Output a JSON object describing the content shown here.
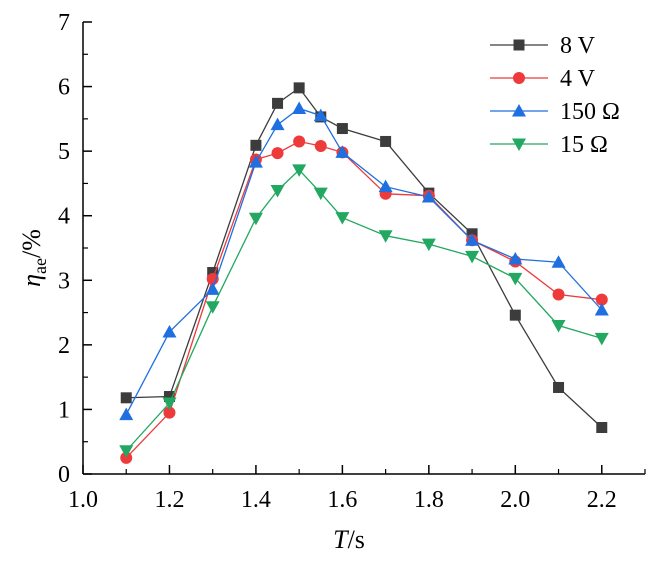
{
  "chart_data": {
    "type": "line",
    "xlabel": "T/s",
    "ylabel": "η_ae/%",
    "xlim": [
      1.0,
      2.3
    ],
    "ylim": [
      0,
      7
    ],
    "xticks": [
      "1.0",
      "1.2",
      "1.4",
      "1.6",
      "1.8",
      "2.0",
      "2.2"
    ],
    "yticks": [
      "0",
      "1",
      "2",
      "3",
      "4",
      "5",
      "6",
      "7"
    ],
    "legend_position": "top-right",
    "grid": false,
    "series": [
      {
        "name": "8 V",
        "color": "#3c3c3c",
        "marker": "square",
        "x": [
          1.1,
          1.2,
          1.3,
          1.4,
          1.45,
          1.5,
          1.55,
          1.6,
          1.7,
          1.8,
          1.9,
          2.0,
          2.1,
          2.2
        ],
        "y": [
          1.18,
          1.2,
          3.12,
          5.09,
          5.74,
          5.98,
          5.53,
          5.35,
          5.15,
          4.35,
          3.72,
          2.46,
          1.34,
          0.72
        ]
      },
      {
        "name": "4 V",
        "color": "#ee3a3a",
        "marker": "circle",
        "x": [
          1.1,
          1.2,
          1.3,
          1.4,
          1.45,
          1.5,
          1.55,
          1.6,
          1.7,
          1.8,
          1.9,
          2.0,
          2.1,
          2.2
        ],
        "y": [
          0.25,
          0.95,
          3.02,
          4.87,
          4.97,
          5.15,
          5.08,
          4.98,
          4.34,
          4.31,
          3.62,
          3.29,
          2.78,
          2.7
        ]
      },
      {
        "name": "150 Ω",
        "color": "#1f6fe0",
        "marker": "triangle-up",
        "x": [
          1.1,
          1.2,
          1.3,
          1.4,
          1.45,
          1.5,
          1.55,
          1.6,
          1.7,
          1.8,
          1.9,
          2.0,
          2.1,
          2.2
        ],
        "y": [
          0.92,
          2.2,
          2.86,
          4.83,
          5.41,
          5.66,
          5.55,
          4.98,
          4.45,
          4.29,
          3.62,
          3.33,
          3.28,
          2.54
        ]
      },
      {
        "name": "15 Ω",
        "color": "#22a860",
        "marker": "triangle-down",
        "x": [
          1.1,
          1.2,
          1.3,
          1.4,
          1.45,
          1.5,
          1.55,
          1.6,
          1.7,
          1.8,
          1.9,
          2.0,
          2.1,
          2.2
        ],
        "y": [
          0.36,
          1.1,
          2.59,
          3.96,
          4.39,
          4.71,
          4.35,
          3.97,
          3.69,
          3.56,
          3.37,
          3.03,
          2.3,
          2.1
        ]
      }
    ]
  }
}
